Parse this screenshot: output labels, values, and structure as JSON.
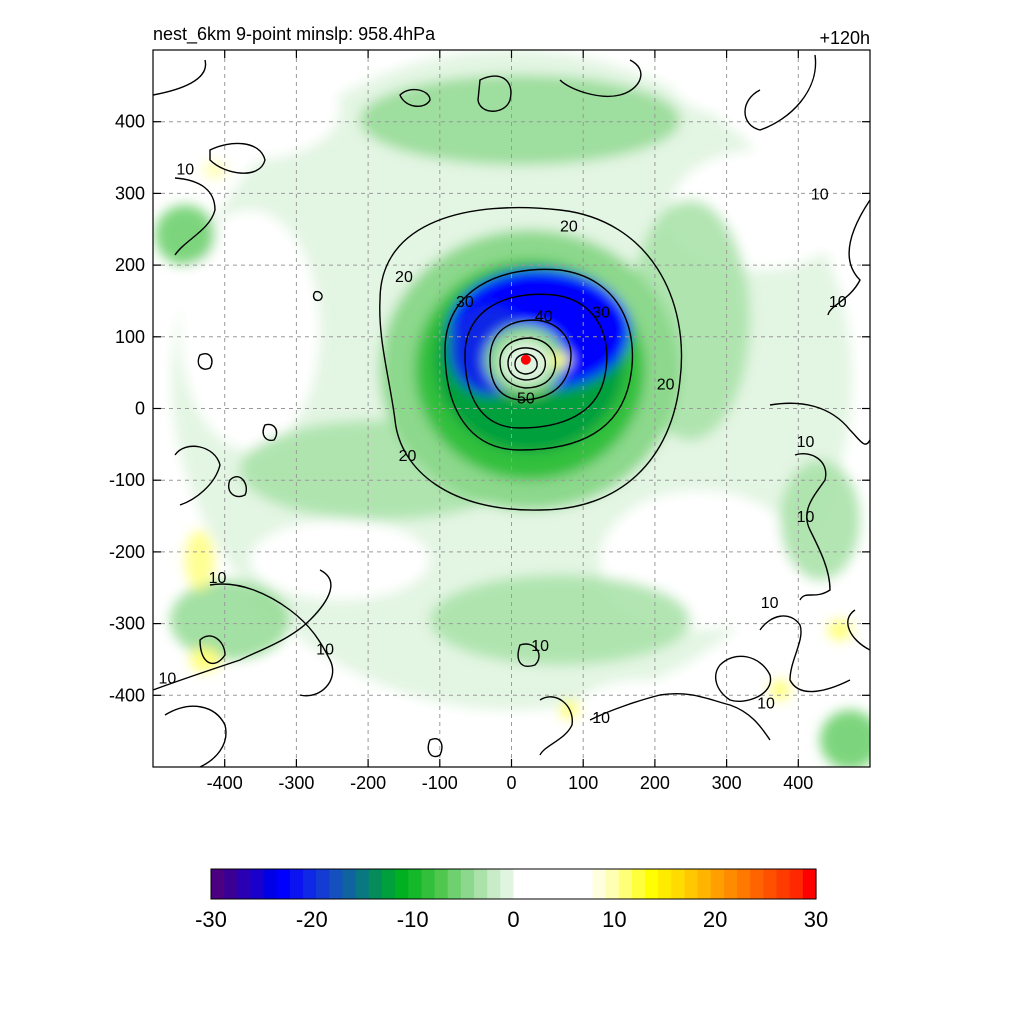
{
  "chart_data": {
    "type": "contour",
    "title_left": "nest_6km  9-point minslp: 958.4hPa",
    "title_right": "+120h",
    "xlim": [
      -500,
      500
    ],
    "ylim": [
      -500,
      500
    ],
    "x_ticks": [
      -400,
      -300,
      -200,
      -100,
      0,
      100,
      200,
      300,
      400
    ],
    "y_ticks": [
      400,
      300,
      200,
      100,
      0,
      -100,
      -200,
      -300,
      -400
    ],
    "grid": true,
    "center": {
      "x": 20,
      "y": 68
    },
    "contour_labels": [
      {
        "text": "20",
        "x": 80,
        "y": 255
      },
      {
        "text": "20",
        "x": -150,
        "y": 185
      },
      {
        "text": "20",
        "x": 215,
        "y": 35
      },
      {
        "text": "20",
        "x": -145,
        "y": -65
      },
      {
        "text": "30",
        "x": -65,
        "y": 150
      },
      {
        "text": "30",
        "x": 125,
        "y": 135
      },
      {
        "text": "40",
        "x": 45,
        "y": 130
      },
      {
        "text": "50",
        "x": 20,
        "y": 15
      },
      {
        "text": "10",
        "x": -455,
        "y": 335
      },
      {
        "text": "10",
        "x": 430,
        "y": 300
      },
      {
        "text": "10",
        "x": 455,
        "y": 150
      },
      {
        "text": "10",
        "x": 410,
        "y": -45
      },
      {
        "text": "10",
        "x": 410,
        "y": -150
      },
      {
        "text": "10",
        "x": 360,
        "y": -270
      },
      {
        "text": "10",
        "x": -410,
        "y": -235
      },
      {
        "text": "10",
        "x": -260,
        "y": -335
      },
      {
        "text": "10",
        "x": -480,
        "y": -375
      },
      {
        "text": "10",
        "x": 40,
        "y": -330
      },
      {
        "text": "10",
        "x": 125,
        "y": -430
      },
      {
        "text": "10",
        "x": 355,
        "y": -410
      }
    ],
    "colorbar": {
      "min": -30,
      "max": 30,
      "tick_values": [
        -30,
        -20,
        -10,
        0,
        10,
        20,
        30
      ],
      "colors": [
        "#4b0082",
        "#3a0096",
        "#2a00b4",
        "#1a00cc",
        "#0000e6",
        "#0000ff",
        "#0a14f0",
        "#0f28e6",
        "#143cd2",
        "#1450be",
        "#0f64a0",
        "#0a7880",
        "#058c5a",
        "#00a03c",
        "#00b020",
        "#14b82a",
        "#32c03c",
        "#50c850",
        "#6ed06e",
        "#8cd88c",
        "#aae2aa",
        "#c8ecc8",
        "#e0f4e0",
        "#ffffff",
        "#ffffff",
        "#ffffff",
        "#ffffff",
        "#ffffff",
        "#ffffff",
        "#ffffe0",
        "#ffffb4",
        "#ffff78",
        "#ffff3c",
        "#ffff00",
        "#ffeb00",
        "#ffdc00",
        "#ffc800",
        "#ffb400",
        "#ffa000",
        "#ff8c00",
        "#ff7800",
        "#ff6400",
        "#ff5000",
        "#ff3c00",
        "#ff2800",
        "#ff0000"
      ]
    }
  }
}
